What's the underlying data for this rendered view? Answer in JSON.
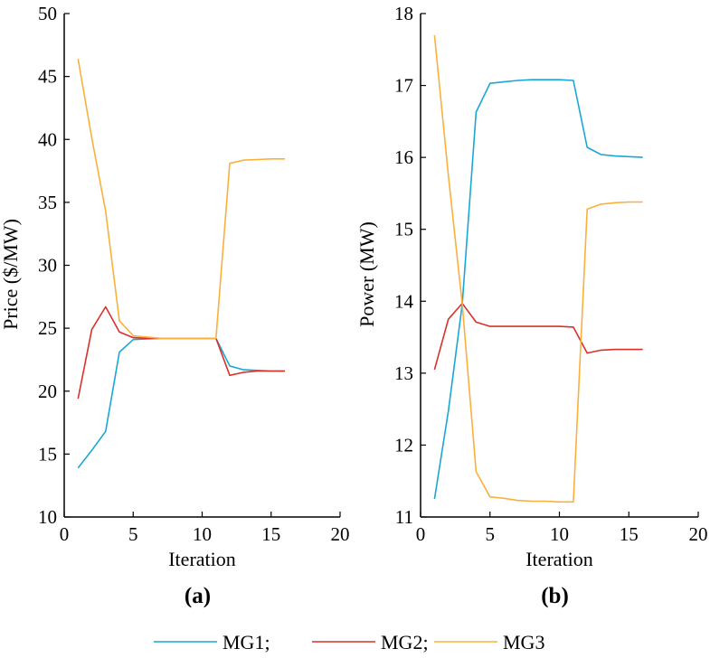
{
  "colors": {
    "MG1": "#1aa7d6",
    "MG2": "#d9302a",
    "MG3": "#fbb03b"
  },
  "legend": [
    {
      "label": "MG1;",
      "series": "MG1"
    },
    {
      "label": "MG2;",
      "series": "MG2"
    },
    {
      "label": "MG3",
      "series": "MG3"
    }
  ],
  "chart_data": [
    {
      "type": "line",
      "caption": "(a)",
      "xlabel": "Iteration",
      "ylabel": "Price ($/MW)",
      "xlim": [
        0,
        20
      ],
      "ylim": [
        10,
        50
      ],
      "xticks": [
        0,
        5,
        10,
        15,
        20
      ],
      "yticks": [
        10,
        15,
        20,
        25,
        30,
        35,
        40,
        45,
        50
      ],
      "x": [
        1,
        2,
        3,
        4,
        5,
        6,
        7,
        8,
        9,
        10,
        11,
        12,
        13,
        14,
        15,
        16
      ],
      "series": [
        {
          "name": "MG1",
          "values": [
            13.9,
            15.3,
            16.8,
            23.1,
            24.1,
            24.15,
            24.2,
            24.2,
            24.2,
            24.2,
            24.2,
            22.0,
            21.7,
            21.65,
            21.6,
            21.6
          ]
        },
        {
          "name": "MG2",
          "values": [
            19.4,
            24.9,
            26.7,
            24.7,
            24.25,
            24.2,
            24.2,
            24.2,
            24.2,
            24.2,
            24.2,
            21.25,
            21.5,
            21.6,
            21.6,
            21.6
          ]
        },
        {
          "name": "MG3",
          "values": [
            46.4,
            40.1,
            34.3,
            25.6,
            24.4,
            24.3,
            24.2,
            24.2,
            24.2,
            24.2,
            24.2,
            38.1,
            38.35,
            38.4,
            38.45,
            38.45
          ]
        }
      ]
    },
    {
      "type": "line",
      "caption": "(b)",
      "xlabel": "Iteration",
      "ylabel": "Power (MW)",
      "xlim": [
        0,
        20
      ],
      "ylim": [
        11,
        18
      ],
      "xticks": [
        0,
        5,
        10,
        15,
        20
      ],
      "yticks": [
        11,
        12,
        13,
        14,
        15,
        16,
        17,
        18
      ],
      "x": [
        1,
        2,
        3,
        4,
        5,
        6,
        7,
        8,
        9,
        10,
        11,
        12,
        13,
        14,
        15,
        16
      ],
      "series": [
        {
          "name": "MG1",
          "values": [
            11.25,
            12.47,
            13.96,
            16.63,
            17.03,
            17.05,
            17.07,
            17.08,
            17.08,
            17.08,
            17.07,
            16.14,
            16.04,
            16.02,
            16.01,
            16.0
          ]
        },
        {
          "name": "MG2",
          "values": [
            13.05,
            13.75,
            13.97,
            13.71,
            13.65,
            13.65,
            13.65,
            13.65,
            13.65,
            13.65,
            13.64,
            13.28,
            13.32,
            13.33,
            13.33,
            13.33
          ]
        },
        {
          "name": "MG3",
          "values": [
            17.7,
            15.75,
            13.96,
            11.63,
            11.28,
            11.26,
            11.23,
            11.22,
            11.22,
            11.21,
            11.21,
            15.28,
            15.35,
            15.37,
            15.38,
            15.38
          ]
        }
      ]
    }
  ]
}
